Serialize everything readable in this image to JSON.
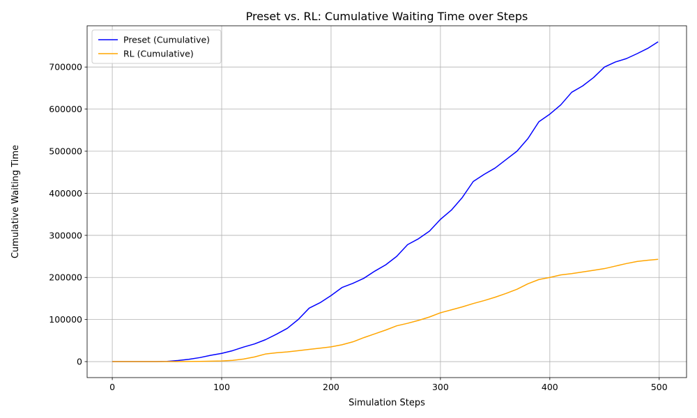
{
  "chart_data": {
    "type": "line",
    "title": "Preset vs. RL: Cumulative Waiting Time over Steps",
    "xlabel": "Simulation Steps",
    "ylabel": "Cumulative Waiting Time",
    "xlim": [
      -23,
      525
    ],
    "ylim": [
      -38000,
      798000
    ],
    "xticks": [
      0,
      100,
      200,
      300,
      400,
      500
    ],
    "yticks": [
      0,
      100000,
      200000,
      300000,
      400000,
      500000,
      600000,
      700000
    ],
    "grid": true,
    "legend_position": "top-left",
    "series": [
      {
        "name": "Preset (Cumulative)",
        "color": "#0000ff",
        "x": [
          0,
          20,
          40,
          50,
          60,
          70,
          80,
          90,
          100,
          110,
          120,
          130,
          140,
          150,
          160,
          170,
          180,
          190,
          200,
          210,
          220,
          230,
          240,
          250,
          260,
          270,
          280,
          290,
          300,
          310,
          320,
          330,
          340,
          350,
          360,
          370,
          380,
          390,
          400,
          410,
          420,
          430,
          440,
          450,
          460,
          470,
          480,
          490,
          499
        ],
        "y": [
          0,
          0,
          0,
          500,
          2500,
          5500,
          9500,
          15000,
          19500,
          26000,
          34500,
          42000,
          52000,
          65000,
          79000,
          100000,
          127000,
          140000,
          157000,
          176000,
          186000,
          198000,
          215000,
          230000,
          250000,
          278000,
          292000,
          310000,
          338000,
          360000,
          390000,
          428000,
          445000,
          460000,
          480000,
          500000,
          530000,
          570000,
          588000,
          610000,
          640000,
          655000,
          675000,
          700000,
          712000,
          720000,
          732000,
          745000,
          760000
        ]
      },
      {
        "name": "RL (Cumulative)",
        "color": "#ffa500",
        "x": [
          0,
          50,
          80,
          100,
          110,
          120,
          130,
          140,
          150,
          160,
          170,
          180,
          190,
          200,
          210,
          220,
          230,
          240,
          250,
          260,
          270,
          280,
          290,
          300,
          310,
          320,
          330,
          340,
          350,
          360,
          370,
          380,
          390,
          400,
          410,
          420,
          430,
          440,
          450,
          460,
          470,
          480,
          490,
          499
        ],
        "y": [
          0,
          0,
          500,
          1500,
          3000,
          6000,
          11000,
          18000,
          21000,
          23000,
          26000,
          29000,
          32000,
          35000,
          40000,
          47000,
          57000,
          66000,
          75000,
          85000,
          91000,
          98000,
          106000,
          116000,
          123000,
          130000,
          138000,
          145000,
          153000,
          162000,
          172000,
          185000,
          195000,
          200000,
          206000,
          209000,
          213000,
          217000,
          221000,
          227000,
          233000,
          238000,
          241000,
          243000
        ]
      }
    ]
  }
}
